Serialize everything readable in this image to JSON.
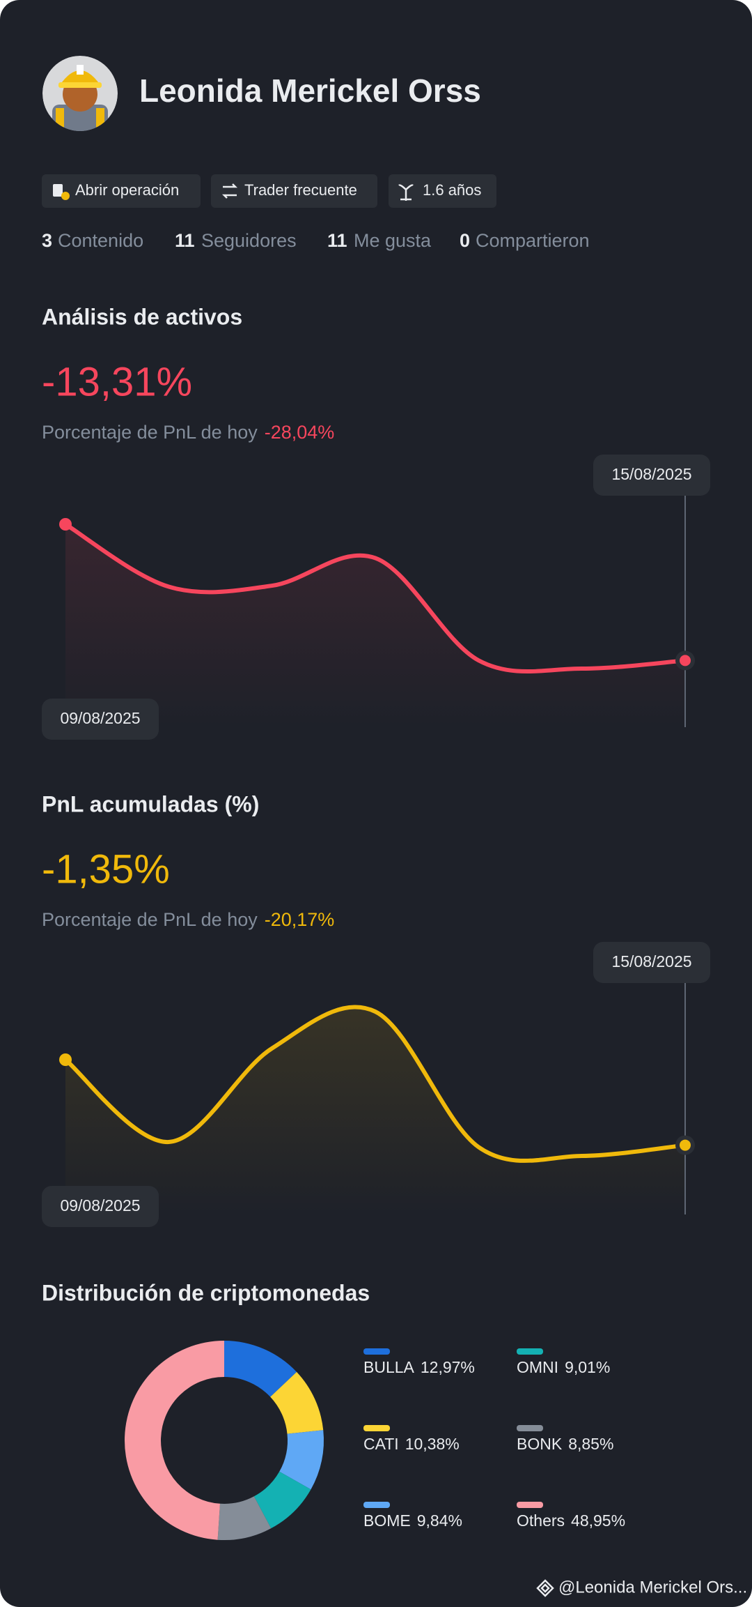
{
  "profile": {
    "name": "Leonida Merickel Orss",
    "badges": [
      "Abrir operación",
      "Trader frecuente",
      "1.6 años"
    ],
    "stats": [
      {
        "count": "3",
        "label": "Contenido"
      },
      {
        "count": "11",
        "label": "Seguidores"
      },
      {
        "count": "11",
        "label": "Me gusta"
      },
      {
        "count": "0",
        "label": "Compartieron"
      }
    ]
  },
  "chart_data": [
    {
      "type": "line",
      "title": "Análisis de activos",
      "headline": "-13,31%",
      "subtitle": "Porcentaje de PnL de hoy",
      "subtitle_value": "-28,04%",
      "categories": [
        "09/08/2025",
        null,
        null,
        null,
        null,
        null,
        "15/08/2025"
      ],
      "series": [
        {
          "color": "#f6465d",
          "values": [
            0,
            -6.1,
            -6.0,
            -3.3,
            -13.3,
            -14.1,
            -13.31
          ]
        }
      ]
    },
    {
      "type": "line",
      "title": "PnL acumuladas (%)",
      "headline": "-1,35%",
      "subtitle": "Porcentaje de PnL de hoy",
      "subtitle_value": "-20,17%",
      "categories": [
        "09/08/2025",
        null,
        null,
        null,
        null,
        null,
        "15/08/2025"
      ],
      "series": [
        {
          "color": "#f0b90b",
          "values": [
            0,
            -1.3,
            0.18,
            0.76,
            -1.38,
            -1.52,
            -1.35
          ]
        }
      ]
    },
    {
      "type": "donut",
      "title": "Distribución de criptomonedas",
      "categories": [
        "BULLA",
        "CATI",
        "BOME",
        "OMNI",
        "BONK",
        "Others"
      ],
      "values": [
        12.97,
        10.38,
        9.84,
        9.01,
        8.85,
        48.95
      ],
      "value_labels": [
        "12,97%",
        "10,38%",
        "9,84%",
        "9,01%",
        "8,85%",
        "48,95%"
      ],
      "colors": [
        "#1e6fdc",
        "#fcd535",
        "#5fa8f5",
        "#14b1b3",
        "#858d98",
        "#f99ba4"
      ]
    }
  ],
  "footer": {
    "handle": "@Leonida Merickel Ors..."
  }
}
